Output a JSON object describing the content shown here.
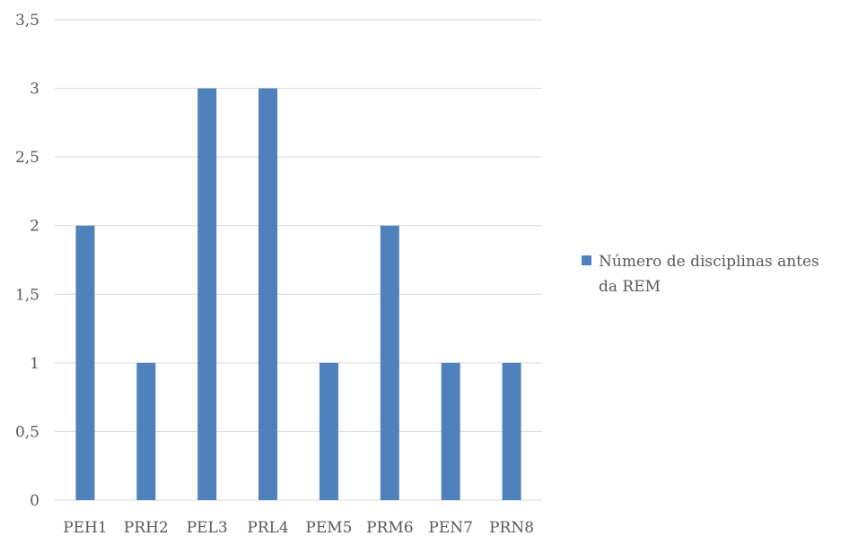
{
  "chart_data": {
    "type": "bar",
    "categories": [
      "PEH1",
      "PRH2",
      "PEL3",
      "PRL4",
      "PEM5",
      "PRM6",
      "PEN7",
      "PRN8"
    ],
    "series": [
      {
        "name": "Número de disciplinas antes da REM",
        "values": [
          2,
          1,
          3,
          3,
          1,
          2,
          1,
          1
        ],
        "color": "#4f81bd"
      }
    ],
    "y_ticks": [
      "0",
      "0,5",
      "1",
      "1,5",
      "2",
      "2,5",
      "3",
      "3,5"
    ],
    "ylim": [
      0,
      3.5
    ],
    "grid": true,
    "legend": {
      "position": "right",
      "lines": [
        "Número de disciplinas antes",
        "da REM"
      ]
    }
  }
}
